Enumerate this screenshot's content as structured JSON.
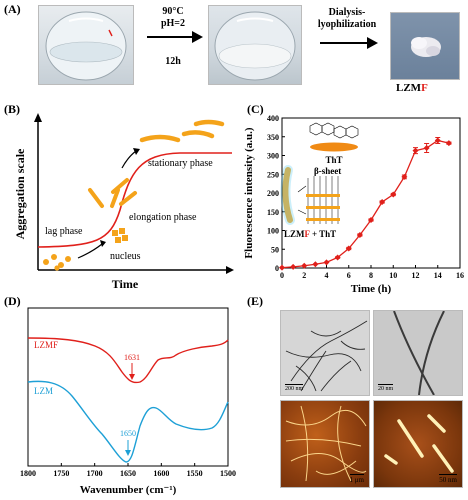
{
  "panelA": {
    "label": "(A)",
    "step1": [
      "90°C",
      "pH=2",
      "12h"
    ],
    "step2": [
      "Dialysis-",
      "lyophilization"
    ],
    "product_prefix": "LZM",
    "product_suffix": "F",
    "accent": "#e0201b"
  },
  "panelB": {
    "label": "(B)",
    "ylabel": "Aggregation scale",
    "xlabel": "Time",
    "lag": "lag phase",
    "nucleus": "nucleus",
    "elongation": "elongation phase",
    "stationary": "stationary phase"
  },
  "panelC": {
    "label": "(C)",
    "tht": "ThT",
    "beta": "β-sheet",
    "complex_prefix": "LZM",
    "complex_mid": "F",
    "complex_suffix": " + ThT",
    "chart_data": {
      "type": "line",
      "xlabel": "Time (h)",
      "ylabel": "Fluorescence intensity (a.u.)",
      "xlim": [
        0,
        16
      ],
      "ylim": [
        0,
        400
      ],
      "xticks": [
        0,
        2,
        4,
        6,
        8,
        10,
        12,
        14,
        16
      ],
      "yticks": [
        0,
        50,
        100,
        150,
        200,
        250,
        300,
        350,
        400
      ],
      "x": [
        0,
        1,
        2,
        3,
        4,
        5,
        6,
        7,
        8,
        9,
        10,
        11,
        12,
        13,
        14,
        15
      ],
      "y": [
        1,
        3,
        6,
        10,
        15,
        28,
        52,
        88,
        128,
        176,
        196,
        243,
        313,
        320,
        340,
        333
      ],
      "err": [
        0,
        0,
        0,
        0,
        0,
        2,
        3,
        3,
        3,
        3,
        3,
        5,
        8,
        12,
        8,
        3
      ],
      "color": "#e0201b"
    }
  },
  "panelD": {
    "label": "(D)",
    "chart_data": {
      "type": "line",
      "xlabel": "Wavenumber (cm⁻¹)",
      "xlim": [
        1800,
        1500
      ],
      "xticks": [
        1800,
        1750,
        1700,
        1650,
        1600,
        1550,
        1500
      ],
      "series": [
        {
          "name": "LZMF",
          "peak": "1631",
          "color": "#e0201b"
        },
        {
          "name": "LZM",
          "peak": "1650",
          "color": "#1ea0d6"
        }
      ]
    }
  },
  "panelE": {
    "label": "(E)",
    "scale1": "200 nm",
    "scale2": "20 nm",
    "scale3": "1 μm",
    "scale4": "50 nm"
  }
}
